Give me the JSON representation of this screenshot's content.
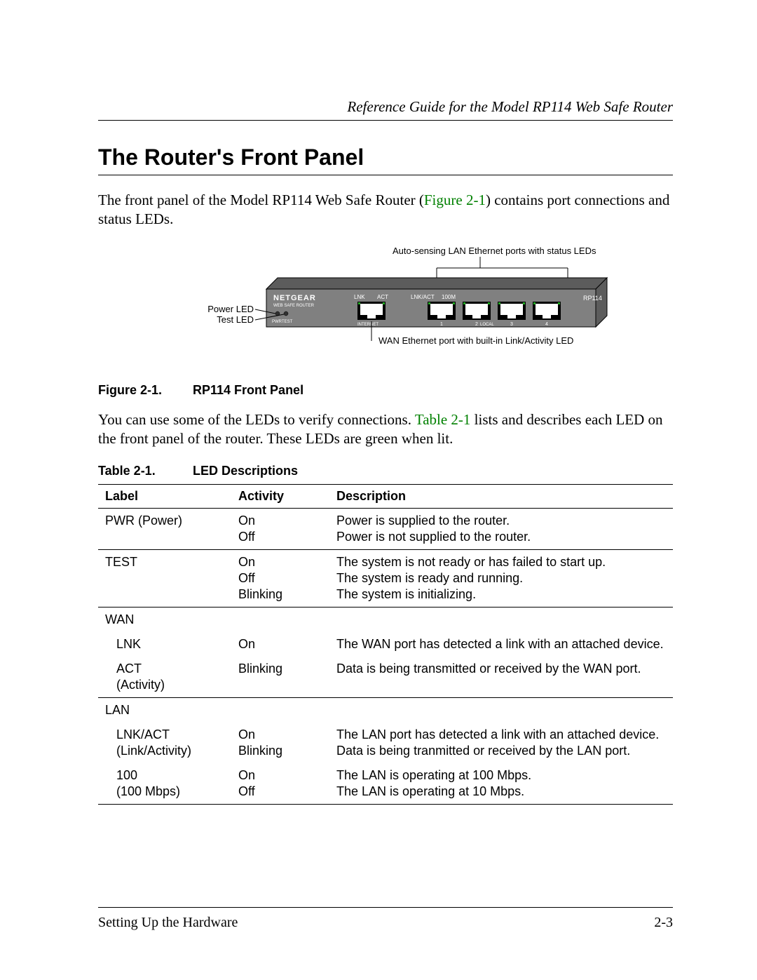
{
  "header": {
    "running_title": "Reference Guide for the Model RP114 Web Safe Router"
  },
  "section": {
    "title": "The Router's Front Panel",
    "para1_pre": "The front panel of the Model RP114 Web Safe Router (",
    "para1_xref": "Figure 2-1",
    "para1_post": ") contains port connections and status LEDs.",
    "para2_pre": "You can use some of the LEDs to verify connections. ",
    "para2_xref": "Table 2-1",
    "para2_post": " lists and describes each LED on the front panel of the router. These LEDs are green when lit."
  },
  "figure": {
    "number": "Figure 2-1.",
    "title": "RP114 Front Panel",
    "labels": {
      "top": "Auto-sensing LAN Ethernet ports with status LEDs",
      "left1": "Power LED",
      "left2": "Test LED",
      "bottom": "WAN Ethernet port with built-in Link/Activity LED"
    },
    "router": {
      "brand": "NETGEAR",
      "subbrand": "WEB SAFE ROUTER",
      "model": "RP114",
      "pwr": "PWR",
      "test": "TEST",
      "lnk": "LNK",
      "act": "ACT",
      "lnkact": "LNK/ACT",
      "hundred": "100M",
      "internet": "INTERNET",
      "local": "LOCAL",
      "ports": [
        "1",
        "2",
        "3",
        "4"
      ]
    },
    "colors": {
      "body": "#808080",
      "body_dark": "#5c5c5c",
      "port_frame": "#000000",
      "port_inner": "#ffffff",
      "text_light": "#ffffff",
      "outline": "#000000",
      "annot": "#000000"
    }
  },
  "table": {
    "number": "Table 2-1.",
    "title": "LED Descriptions",
    "columns": [
      "Label",
      "Activity",
      "Description"
    ],
    "rows": [
      {
        "group_start": true,
        "label": "PWR (Power)",
        "activity": "On\nOff",
        "desc": "Power is supplied to the router.\nPower is not supplied to the router."
      },
      {
        "group_start": true,
        "label": "TEST",
        "activity": "On\nOff\nBlinking",
        "desc": "The system is not ready or has failed to start up.\nThe system is ready and running.\nThe system is initializing."
      },
      {
        "group_start": true,
        "label": "WAN",
        "activity": "",
        "desc": ""
      },
      {
        "indent": true,
        "label": "LNK",
        "activity": "On",
        "desc": "The WAN port has detected a link with an attached device."
      },
      {
        "indent": true,
        "label": "ACT (Activity)",
        "activity": "Blinking",
        "desc": "Data is being transmitted or received by the WAN port."
      },
      {
        "group_start": true,
        "label": "LAN",
        "activity": "",
        "desc": ""
      },
      {
        "indent": true,
        "label": "LNK/ACT (Link/Activity)",
        "activity": "On\nBlinking",
        "desc": "The LAN port has detected a link with an attached device.\nData is being tranmitted or received by the LAN port."
      },
      {
        "indent": true,
        "last": true,
        "label": "100 (100 Mbps)",
        "activity": "On\nOff",
        "desc": "The LAN is operating at  100 Mbps.\nThe LAN is operating at  10 Mbps."
      }
    ]
  },
  "footer": {
    "left": "Setting Up the Hardware",
    "right": "2-3"
  }
}
